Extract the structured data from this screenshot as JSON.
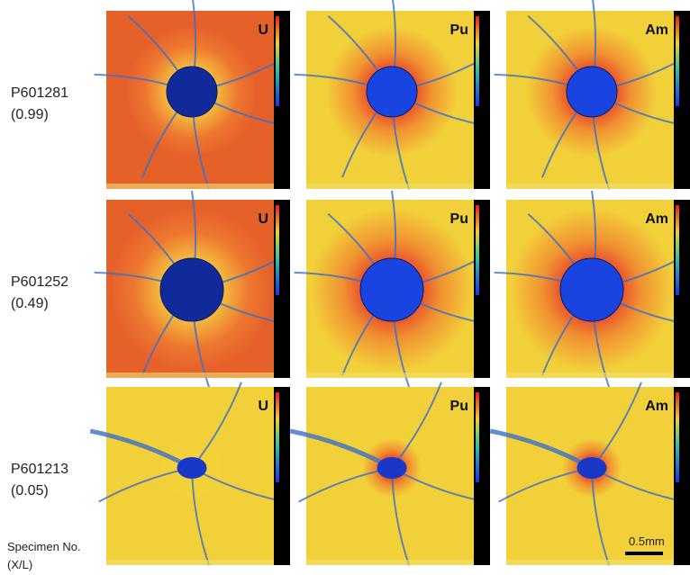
{
  "rows": [
    {
      "specimen": "P601281",
      "ratio": "(0.99)"
    },
    {
      "specimen": "P601252",
      "ratio": "(0.49)"
    },
    {
      "specimen": "P601213",
      "ratio": "(0.05)"
    }
  ],
  "elements": [
    "U",
    "Pu",
    "Am"
  ],
  "footer": {
    "line1": "Specimen No.",
    "line2": "(X/L)"
  },
  "scale_bar": "0.5mm"
}
